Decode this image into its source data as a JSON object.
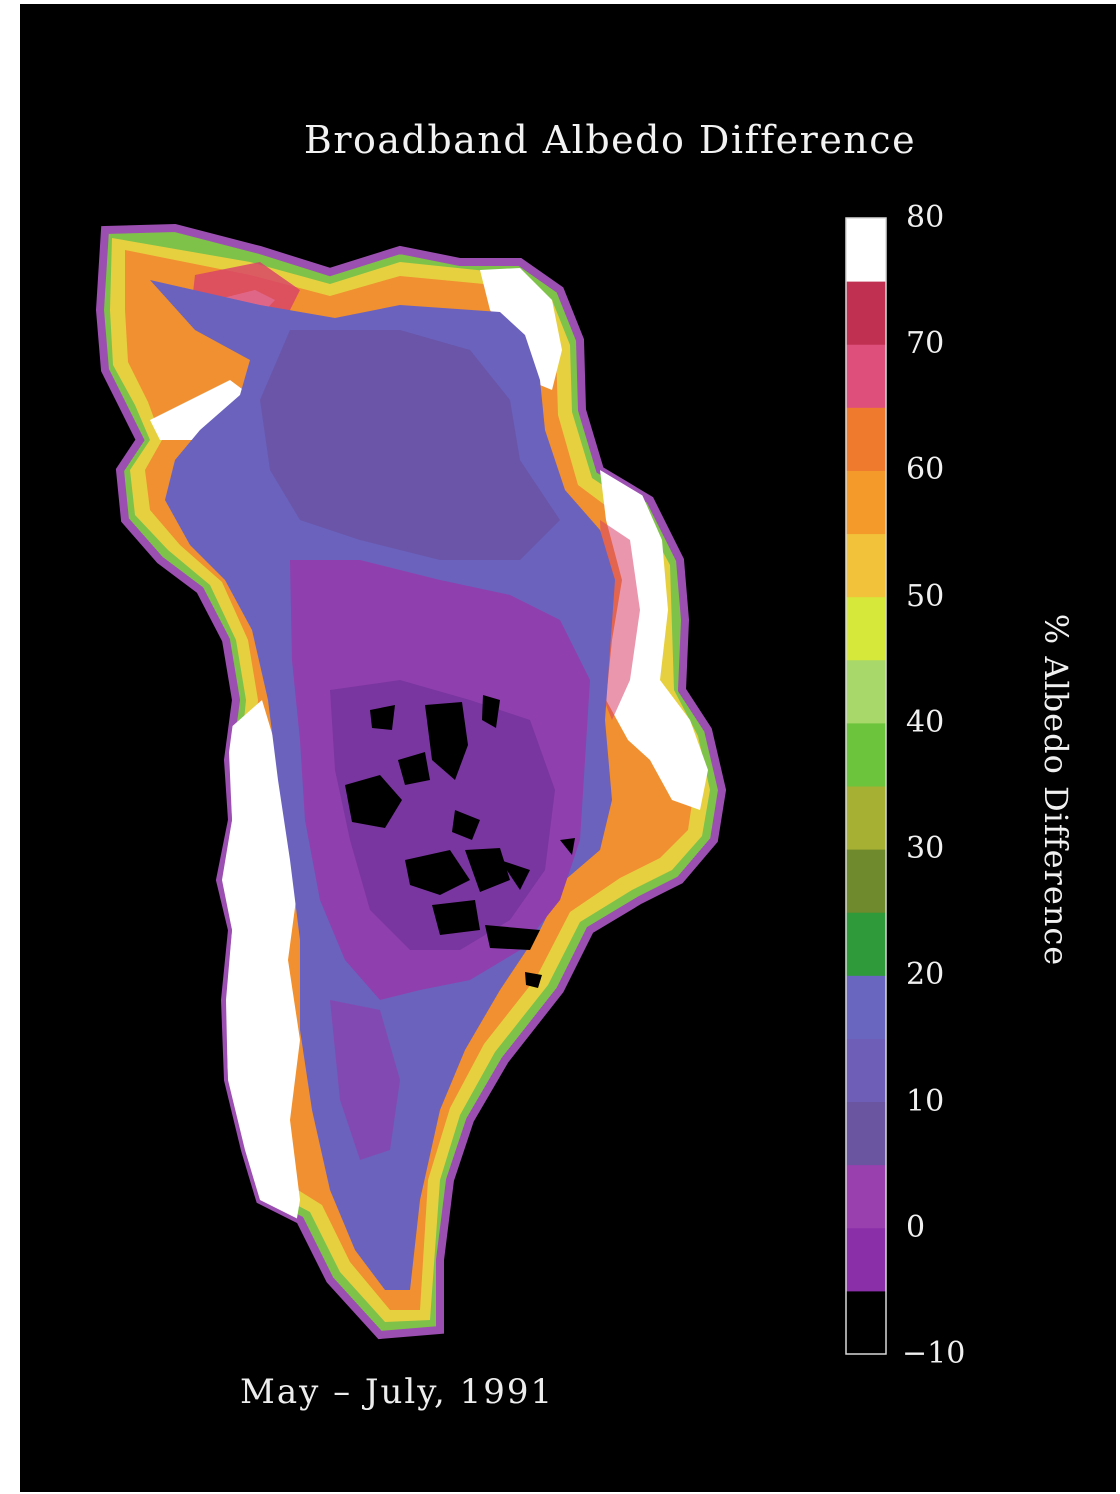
{
  "title": "Broadband Albedo Difference",
  "caption": "May – July, 1991",
  "colorbar": {
    "label": "% Albedo Difference",
    "min": -10,
    "max": 80,
    "tick_labels": [
      "80",
      "70",
      "60",
      "50",
      "40",
      "30",
      "20",
      "10",
      "0",
      "−10"
    ],
    "tick_values": [
      80,
      70,
      60,
      50,
      40,
      30,
      20,
      10,
      0,
      -10
    ],
    "bins": [
      {
        "from": -10,
        "to": -5,
        "color": "#000000"
      },
      {
        "from": -5,
        "to": 0,
        "color": "#8a2fa8"
      },
      {
        "from": 0,
        "to": 5,
        "color": "#9a3fae"
      },
      {
        "from": 5,
        "to": 10,
        "color": "#6a55a0"
      },
      {
        "from": 10,
        "to": 15,
        "color": "#6e5eb8"
      },
      {
        "from": 15,
        "to": 20,
        "color": "#6966c0"
      },
      {
        "from": 20,
        "to": 25,
        "color": "#2f9a3a"
      },
      {
        "from": 25,
        "to": 30,
        "color": "#6e8a2c"
      },
      {
        "from": 30,
        "to": 35,
        "color": "#a6b032"
      },
      {
        "from": 35,
        "to": 40,
        "color": "#6cc43c"
      },
      {
        "from": 40,
        "to": 45,
        "color": "#a8d86a"
      },
      {
        "from": 45,
        "to": 50,
        "color": "#d6e83a"
      },
      {
        "from": 50,
        "to": 55,
        "color": "#f2c23a"
      },
      {
        "from": 55,
        "to": 60,
        "color": "#f39a2a"
      },
      {
        "from": 60,
        "to": 65,
        "color": "#ef7a2e"
      },
      {
        "from": 65,
        "to": 70,
        "color": "#df4f7c"
      },
      {
        "from": 70,
        "to": 75,
        "color": "#c03050"
      },
      {
        "from": 75,
        "to": 80,
        "color": "#ffffff"
      }
    ]
  },
  "map": {
    "region": "Greenland",
    "colors": {
      "outline": "#9b4fb0",
      "coast_green": "#7ec24a",
      "coast_yellow": "#e6d040",
      "coast_orange": "#f09030",
      "coast_red": "#d8406a",
      "coast_white": "#ffffff",
      "interior_blue": "#6a62bd",
      "interior_purple": "#8f3fae",
      "interior_core": "#7a36a0",
      "no_data": "#000000"
    }
  }
}
